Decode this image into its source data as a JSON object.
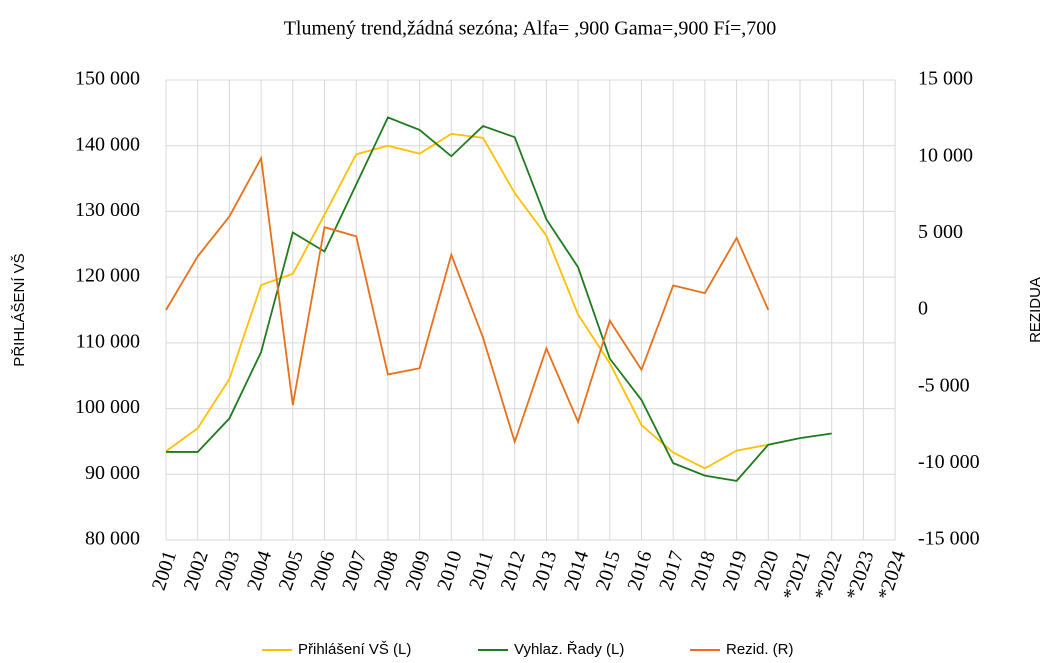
{
  "chart_data": {
    "type": "line",
    "title": "Tlumený trend,žádná sezóna; Alfa=  ,900 Gama=,900 Fí=,700",
    "y_label": "PŘIHLÁŠENÍ VŠ",
    "y2_label": "REZIDUA",
    "categories": [
      "2001",
      "2002",
      "2003",
      "2004",
      "2005",
      "2006",
      "2007",
      "2008",
      "2009",
      "2010",
      "2011",
      "2012",
      "2013",
      "2014",
      "2015",
      "2016",
      "2017",
      "2018",
      "2019",
      "2020",
      "*2021",
      "*2022",
      "*2023",
      "*2024"
    ],
    "series": [
      {
        "name": "Přihlášení VŠ (L)",
        "color": "#ffc000",
        "values": [
          93500,
          97000,
          104500,
          118800,
          120500,
          129500,
          138700,
          140000,
          138800,
          141800,
          141200,
          132800,
          126300,
          114300,
          106900,
          97500,
          93300,
          90900,
          93600,
          94500,
          null,
          null,
          null,
          null
        ]
      },
      {
        "name": "Vyhlaz. Řady (L)",
        "color": "#1e7b1e",
        "values": [
          93400,
          93400,
          98500,
          108600,
          126800,
          123900,
          134100,
          144300,
          142400,
          138400,
          143000,
          141300,
          128800,
          121500,
          107600,
          101300,
          91700,
          89800,
          89000,
          94500,
          95500,
          96200,
          null,
          null
        ]
      },
      {
        "name": "Rezid. (R)",
        "color": "#e8701a",
        "axis": "y2",
        "values": [
          0,
          3500,
          6100,
          9900,
          -6200,
          5400,
          4800,
          -4200,
          -3800,
          3600,
          -1800,
          -8600,
          -2500,
          -7300,
          -700,
          -3900,
          1600,
          1100,
          4700,
          0,
          null,
          null,
          null,
          null
        ]
      }
    ],
    "ylim": [
      80000,
      150000
    ],
    "yticks": [
      {
        "value": 80000,
        "label": "80 000"
      },
      {
        "value": 90000,
        "label": "90 000"
      },
      {
        "value": 100000,
        "label": "100 000"
      },
      {
        "value": 110000,
        "label": "110 000"
      },
      {
        "value": 120000,
        "label": "120 000"
      },
      {
        "value": 130000,
        "label": "130 000"
      },
      {
        "value": 140000,
        "label": "140 000"
      },
      {
        "value": 150000,
        "label": "150 000"
      }
    ],
    "y2lim": [
      -15000,
      15000
    ],
    "y2ticks": [
      {
        "value": -15000,
        "label": "-15 000"
      },
      {
        "value": -10000,
        "label": "-10 000"
      },
      {
        "value": -5000,
        "label": "-5 000"
      },
      0,
      {
        "value": 5000,
        "label": "5 000"
      },
      {
        "value": 10000,
        "label": "10 000"
      },
      {
        "value": 15000,
        "label": "15 000"
      }
    ],
    "grid": true
  }
}
